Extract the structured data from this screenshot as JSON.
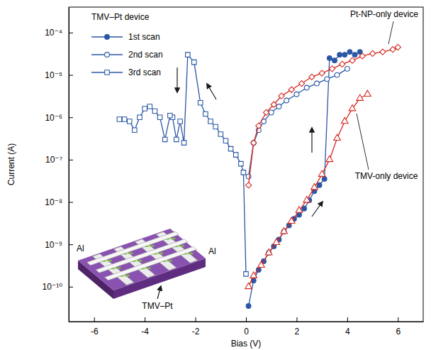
{
  "chart_data": {
    "type": "line",
    "x_label": "Bias (V)",
    "y_label": "Current (A)",
    "log": "y",
    "grid": false,
    "legend": "upper left",
    "xlim": [
      -7,
      7
    ],
    "xticks": [
      -6,
      -4,
      -2,
      0,
      2,
      4,
      6
    ],
    "ylim": [
      1.5e-11,
      0.0004
    ],
    "yticks": [
      {
        "value": 1e-10,
        "label": "10⁻¹⁰"
      },
      {
        "value": 1e-09,
        "label": "10⁻⁹"
      },
      {
        "value": 1e-08,
        "label": "10⁻⁸"
      },
      {
        "value": 1e-07,
        "label": "10⁻⁷"
      },
      {
        "value": 1e-06,
        "label": "10⁻⁶"
      },
      {
        "value": 1e-05,
        "label": "10⁻⁵"
      },
      {
        "value": 0.0001,
        "label": "10⁻⁴"
      }
    ],
    "annotations": [
      "TMV–Pt device",
      "Al",
      "Al",
      "TMV–Pt"
    ],
    "series": [
      {
        "name": "1st scan",
        "color": "#2a57a5",
        "marker": "circle",
        "x": [
          0.1,
          0.3,
          0.5,
          0.7,
          0.9,
          1.1,
          1.3,
          1.5,
          1.7,
          1.9,
          2.1,
          2.3,
          2.5,
          2.7,
          2.9,
          3.1,
          3.3,
          3.5,
          3.7,
          3.9,
          4.1,
          4.3,
          4.5
        ],
        "values": [
          3.5e-11,
          1.4e-10,
          2.5e-10,
          4e-10,
          6.3e-10,
          9e-10,
          1.3e-09,
          2e-09,
          2.8e-09,
          4e-09,
          5e-09,
          7e-09,
          1.1e-08,
          1.8e-08,
          2.5e-08,
          3.5e-08,
          2.5e-05,
          2.2e-05,
          3e-05,
          3e-05,
          3.5e-05,
          3e-05,
          3.5e-05
        ]
      },
      {
        "name": "2nd scan",
        "color": "#2a57a5",
        "marker": "circle-open",
        "x": [
          0.1,
          0.3,
          0.5,
          0.7,
          1.0,
          1.3,
          1.6,
          2.0,
          2.4,
          2.8,
          3.2,
          3.6,
          4.0
        ],
        "values": [
          4e-08,
          2.5e-07,
          5e-07,
          8e-07,
          1.3e-06,
          1.8e-06,
          2.5e-06,
          3.5e-06,
          5e-06,
          6.3e-06,
          8e-06,
          1e-05,
          1.4e-05
        ]
      },
      {
        "name": "3rd scan",
        "color": "#2a57a5",
        "marker": "square-open",
        "x": [
          0,
          -0.1,
          -0.2,
          -0.4,
          -0.6,
          -0.8,
          -1.0,
          -1.2,
          -1.4,
          -1.6,
          -1.8,
          -2.05,
          -2.3,
          -2.45,
          -2.6,
          -2.75,
          -2.9,
          -3.0,
          -3.2,
          -3.4,
          -3.6,
          -3.8,
          -4.0,
          -4.2,
          -4.4,
          -4.6,
          -4.8,
          -5.0
        ],
        "values": [
          2e-10,
          5e-08,
          8e-08,
          1.3e-07,
          1.8e-07,
          2.8e-07,
          4e-07,
          6e-07,
          8e-07,
          1.2e-06,
          2.2e-06,
          2e-05,
          3e-05,
          2.5e-07,
          8e-07,
          3e-07,
          1e-06,
          1.1e-06,
          3e-07,
          1e-06,
          1.4e-06,
          1.8e-06,
          1.6e-06,
          1e-06,
          5e-07,
          8e-07,
          9e-07,
          9e-07
        ]
      },
      {
        "name": "Pt-NP-only device",
        "color": "#d7261e",
        "marker": "diamond-open",
        "x": [
          0.1,
          0.3,
          0.5,
          0.8,
          1.1,
          1.4,
          1.8,
          2.2,
          2.6,
          3.0,
          3.4,
          3.8,
          4.2,
          4.6,
          5.0,
          5.4,
          5.8,
          6.0
        ],
        "values": [
          2.5e-08,
          2.5e-07,
          6.3e-07,
          1.3e-06,
          2e-06,
          3.2e-06,
          4.5e-06,
          6.3e-06,
          9e-06,
          1.1e-05,
          1.4e-05,
          1.8e-05,
          2.2e-05,
          2.8e-05,
          3.2e-05,
          3.5e-05,
          4e-05,
          4.5e-05
        ]
      },
      {
        "name": "TMV-only device",
        "color": "#d7261e",
        "marker": "triangle-open",
        "x": [
          0.1,
          0.3,
          0.6,
          0.9,
          1.2,
          1.5,
          1.8,
          2.1,
          2.4,
          2.7,
          3.0,
          3.3,
          3.6,
          3.9,
          4.2,
          4.5,
          4.8
        ],
        "values": [
          1e-10,
          1.8e-10,
          3.2e-10,
          6.3e-10,
          1.1e-09,
          2e-09,
          3.5e-09,
          6.3e-09,
          1.1e-08,
          2.2e-08,
          4.5e-08,
          1e-07,
          3.2e-07,
          8e-07,
          1.6e-06,
          2.8e-06,
          3.5e-06
        ]
      }
    ]
  }
}
